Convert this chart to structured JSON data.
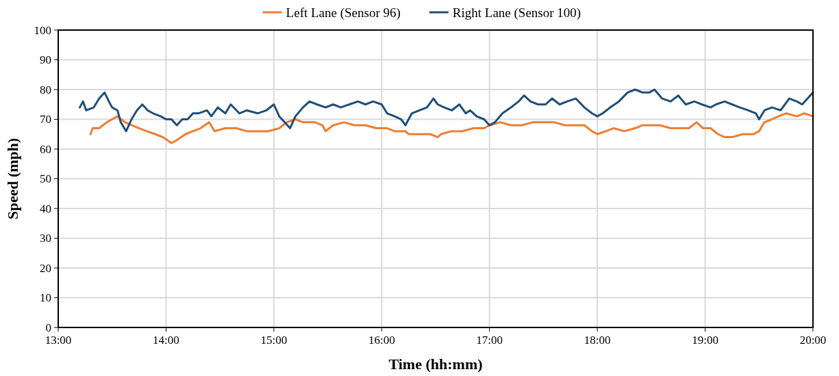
{
  "chart_data": {
    "type": "line",
    "xlabel": "Time (hh:mm)",
    "ylabel": "Speed (mph)",
    "xlim": [
      13,
      20
    ],
    "ylim": [
      0,
      100
    ],
    "xticks": [
      {
        "value": 13,
        "label": "13:00"
      },
      {
        "value": 14,
        "label": "14:00"
      },
      {
        "value": 15,
        "label": "15:00"
      },
      {
        "value": 16,
        "label": "16:00"
      },
      {
        "value": 17,
        "label": "17:00"
      },
      {
        "value": 18,
        "label": "18:00"
      },
      {
        "value": 19,
        "label": "19:00"
      },
      {
        "value": 20,
        "label": "20:00"
      }
    ],
    "yticks": [
      0,
      10,
      20,
      30,
      40,
      50,
      60,
      70,
      80,
      90,
      100
    ],
    "grid": true,
    "legend": "top",
    "marker": "none",
    "line_style": "solid",
    "series": [
      {
        "name": "Left Lane (Sensor 96)",
        "color": "#ed7d31",
        "x": [
          13.3,
          13.32,
          13.38,
          13.45,
          13.5,
          13.55,
          13.62,
          13.68,
          13.75,
          13.82,
          13.9,
          13.97,
          14.05,
          14.1,
          14.18,
          14.25,
          14.32,
          14.4,
          14.45,
          14.55,
          14.65,
          14.75,
          14.85,
          14.95,
          15.05,
          15.12,
          15.2,
          15.27,
          15.38,
          15.45,
          15.48,
          15.55,
          15.65,
          15.75,
          15.85,
          15.95,
          16.05,
          16.12,
          16.22,
          16.25,
          16.35,
          16.45,
          16.52,
          16.55,
          16.65,
          16.75,
          16.85,
          16.95,
          17,
          17.1,
          17.2,
          17.3,
          17.4,
          17.5,
          17.6,
          17.7,
          17.8,
          17.88,
          17.95,
          18,
          18.08,
          18.15,
          18.25,
          18.35,
          18.42,
          18.5,
          18.58,
          18.68,
          18.75,
          18.85,
          18.92,
          18.98,
          19.05,
          19.12,
          19.18,
          19.25,
          19.35,
          19.45,
          19.5,
          19.55,
          19.62,
          19.68,
          19.75,
          19.85,
          19.92,
          20
        ],
        "values": [
          65,
          67,
          67,
          69,
          70,
          71,
          69,
          68,
          67,
          66,
          65,
          64,
          62,
          63,
          65,
          66,
          67,
          69,
          66,
          67,
          67,
          66,
          66,
          66,
          67,
          69,
          70,
          69,
          69,
          68,
          66,
          68,
          69,
          68,
          68,
          67,
          67,
          66,
          66,
          65,
          65,
          65,
          64,
          65,
          66,
          66,
          67,
          67,
          68,
          69,
          68,
          68,
          69,
          69,
          69,
          68,
          68,
          68,
          66,
          65,
          66,
          67,
          66,
          67,
          68,
          68,
          68,
          67,
          67,
          67,
          69,
          67,
          67,
          65,
          64,
          64,
          65,
          65,
          66,
          69,
          70,
          71,
          72,
          71,
          72,
          71
        ]
      },
      {
        "name": "Right Lane (Sensor 100)",
        "color": "#1f4e79",
        "x": [
          13.2,
          13.23,
          13.26,
          13.33,
          13.38,
          13.43,
          13.47,
          13.5,
          13.55,
          13.58,
          13.63,
          13.68,
          13.73,
          13.78,
          13.83,
          13.88,
          13.95,
          14,
          14.05,
          14.1,
          14.15,
          14.2,
          14.25,
          14.3,
          14.38,
          14.42,
          14.48,
          14.55,
          14.6,
          14.68,
          14.75,
          14.85,
          14.93,
          15,
          15.05,
          15.1,
          15.15,
          15.2,
          15.27,
          15.33,
          15.4,
          15.48,
          15.55,
          15.62,
          15.7,
          15.78,
          15.85,
          15.92,
          16,
          16.05,
          16.12,
          16.18,
          16.22,
          16.28,
          16.35,
          16.42,
          16.48,
          16.52,
          16.58,
          16.65,
          16.72,
          16.78,
          16.82,
          16.88,
          16.95,
          17,
          17.05,
          17.12,
          17.2,
          17.27,
          17.32,
          17.38,
          17.45,
          17.52,
          17.58,
          17.65,
          17.72,
          17.8,
          17.88,
          17.95,
          18,
          18.05,
          18.12,
          18.2,
          18.28,
          18.35,
          18.42,
          18.48,
          18.53,
          18.6,
          18.68,
          18.75,
          18.82,
          18.9,
          18.97,
          19.05,
          19.1,
          19.18,
          19.25,
          19.32,
          19.4,
          19.47,
          19.5,
          19.55,
          19.62,
          19.7,
          19.78,
          19.85,
          19.9,
          19.95,
          20
        ],
        "values": [
          74,
          76,
          73,
          74,
          77,
          79,
          76,
          74,
          73,
          69,
          66,
          70,
          73,
          75,
          73,
          72,
          71,
          70,
          70,
          68,
          70,
          70,
          72,
          72,
          73,
          71,
          74,
          72,
          75,
          72,
          73,
          72,
          73,
          75,
          71,
          69,
          67,
          71,
          74,
          76,
          75,
          74,
          75,
          74,
          75,
          76,
          75,
          76,
          75,
          72,
          71,
          70,
          68,
          72,
          73,
          74,
          77,
          75,
          74,
          73,
          75,
          72,
          73,
          71,
          70,
          68,
          69,
          72,
          74,
          76,
          78,
          76,
          75,
          75,
          77,
          75,
          76,
          77,
          74,
          72,
          71,
          72,
          74,
          76,
          79,
          80,
          79,
          79,
          80,
          77,
          76,
          78,
          75,
          76,
          75,
          74,
          75,
          76,
          75,
          74,
          73,
          72,
          70,
          73,
          74,
          73,
          77,
          76,
          75,
          77,
          79
        ]
      }
    ]
  }
}
